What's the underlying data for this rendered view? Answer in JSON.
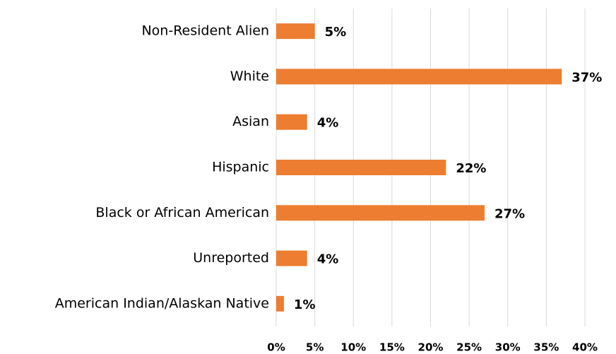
{
  "chart_data": {
    "type": "bar",
    "orientation": "horizontal",
    "categories": [
      "Non-Resident Alien",
      "White",
      "Asian",
      "Hispanic",
      "Black or African American",
      "Unreported",
      "American Indian/Alaskan Native"
    ],
    "values": [
      5,
      37,
      4,
      22,
      27,
      4,
      1
    ],
    "value_labels": [
      "5%",
      "37%",
      "4%",
      "22%",
      "27%",
      "4%",
      "1%"
    ],
    "color": "#ed7d31",
    "xlim": [
      0,
      40
    ],
    "xticks": [
      {
        "value": 0,
        "label": "0%"
      },
      {
        "value": 5,
        "label": "5%"
      },
      {
        "value": 10,
        "label": "10%"
      },
      {
        "value": 15,
        "label": "15%"
      },
      {
        "value": 20,
        "label": "20%"
      },
      {
        "value": 25,
        "label": "25%"
      },
      {
        "value": 30,
        "label": "30%"
      },
      {
        "value": 35,
        "label": "35%"
      },
      {
        "value": 40,
        "label": "40%"
      }
    ],
    "grid": true
  }
}
